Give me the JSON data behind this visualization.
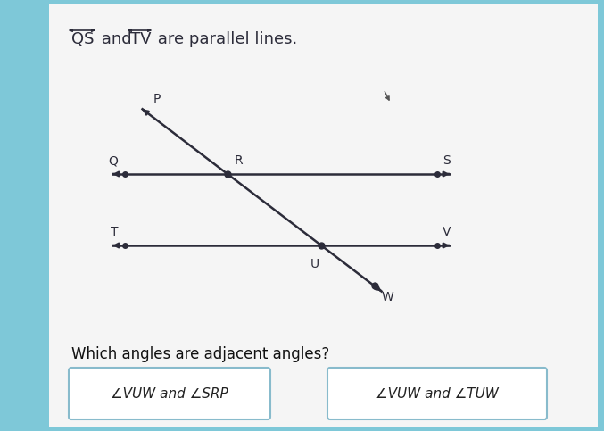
{
  "bg_color": "#7ec8d8",
  "panel_color": "#f5f5f5",
  "title_qs": "QS",
  "title_tv": "TV",
  "title_rest": " are parallel lines.",
  "question_text": "Which angles are adjacent angles?",
  "answer1": "∠VUW and ∠SRP",
  "answer2": "∠VUW and ∠TUW",
  "line_color": "#2c2c3a",
  "dot_color": "#2c2c3a",
  "font_size_title": 13,
  "font_size_labels": 10,
  "font_size_question": 12,
  "font_size_answer": 11,
  "btn_edge_color": "#88bbcc"
}
